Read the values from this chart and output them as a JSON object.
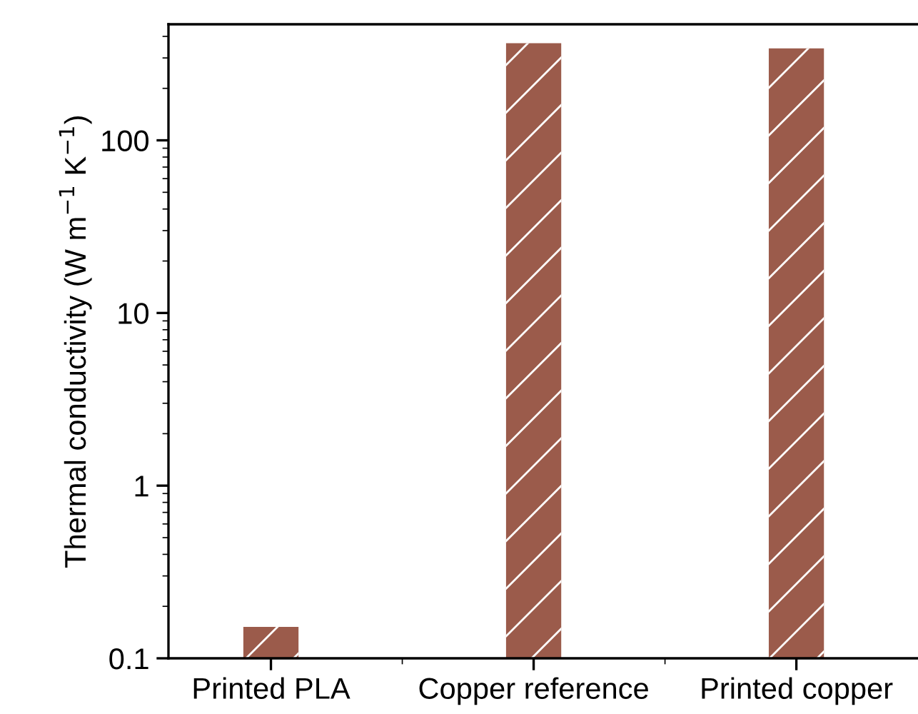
{
  "chart_data": {
    "type": "bar",
    "ylabel": "Thermal conductivity (W m$^{−1}$ K$^{−1}$)",
    "categories": [
      "Printed PLA",
      "Copper reference",
      "Printed copper"
    ],
    "values": [
      0.152,
      365,
      341
    ],
    "color": "#9b5b4b",
    "log": true,
    "ylim": [
      0.1,
      470
    ],
    "yticks": [
      0.1,
      1,
      10,
      100
    ],
    "grid": false,
    "legend": false
  }
}
